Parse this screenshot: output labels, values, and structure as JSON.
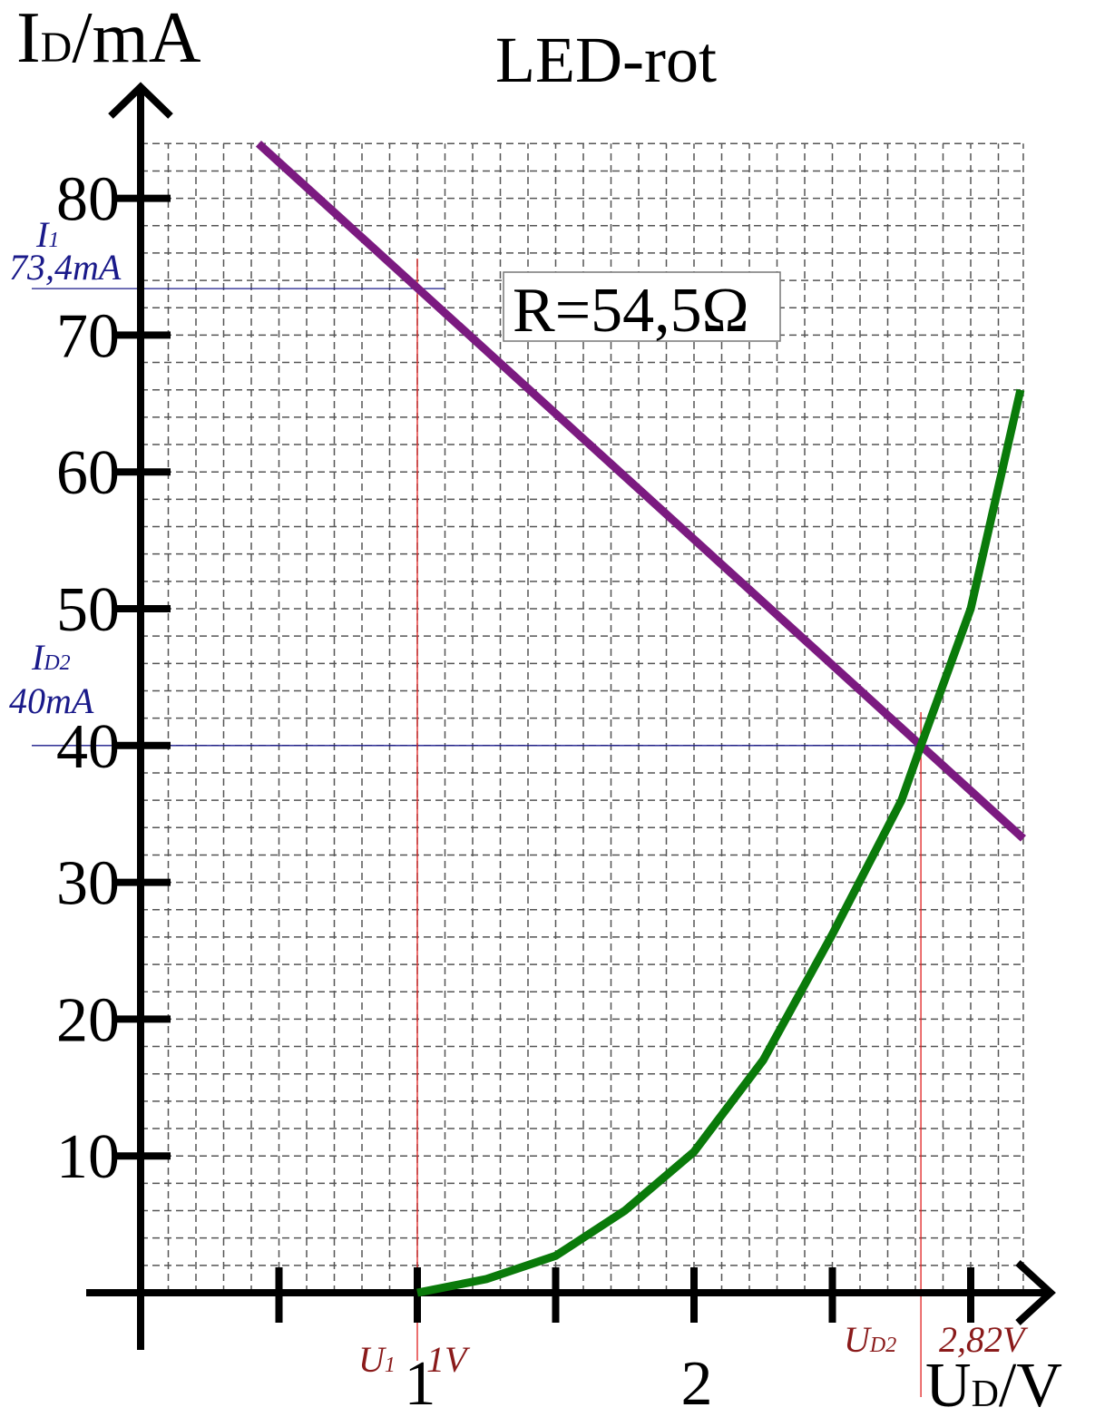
{
  "chart_data": {
    "type": "line",
    "title": "LED-rot",
    "y_label": [
      "I",
      "D",
      "/mA"
    ],
    "x_label": [
      "U",
      "D",
      "/V"
    ],
    "xlim": [
      0,
      3.19
    ],
    "ylim": [
      0,
      84
    ],
    "xticks": [
      1,
      2
    ],
    "x_minor_ticks": [
      0.5,
      1.5,
      2.5,
      3
    ],
    "yticks": [
      10,
      20,
      30,
      40,
      50,
      60,
      70,
      80
    ],
    "grid": true,
    "grid_x_step": 0.1,
    "grid_y_step": 2,
    "series": [
      {
        "name": "R=54,5Ω",
        "color": "#7b1a80",
        "x": [
          0.426,
          3.19
        ],
        "values": [
          84,
          33.2
        ]
      },
      {
        "name": "LED-rot",
        "color": "#0a7a0a",
        "x": [
          1,
          1.25,
          1.5,
          1.75,
          2,
          2.25,
          2.5,
          2.75,
          2.82,
          3,
          3.18
        ],
        "values": [
          0,
          1,
          2.7,
          6,
          10.3,
          17,
          26.2,
          36,
          40,
          50,
          66
        ]
      }
    ],
    "annotations": [
      {
        "axis": "y",
        "value": 73.4,
        "name": [
          "I",
          "1"
        ],
        "label": "73,4mA",
        "color": "#1a1a8a"
      },
      {
        "axis": "y",
        "value": 40,
        "name": [
          "I",
          "D2"
        ],
        "label": "40mA",
        "color": "#1a1a8a"
      },
      {
        "axis": "x",
        "value": 1,
        "name": [
          "U",
          "1"
        ],
        "label": "1V",
        "color": "#8a1a1a"
      },
      {
        "axis": "x",
        "value": 2.82,
        "name": [
          "U",
          "D2"
        ],
        "label": "2,82V",
        "color": "#8a1a1a"
      }
    ]
  }
}
